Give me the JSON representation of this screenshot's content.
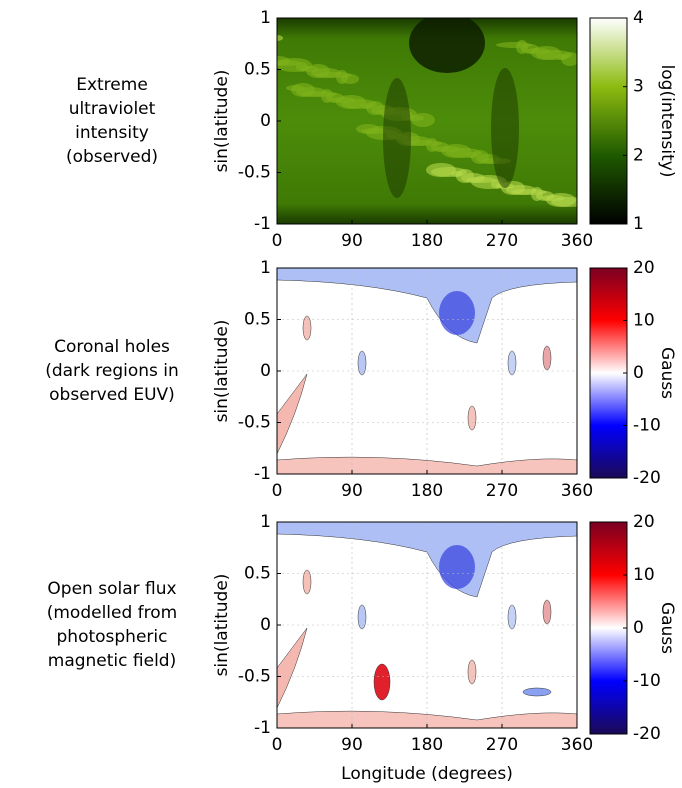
{
  "chart_data": [
    {
      "type": "heatmap",
      "row_label": [
        "Extreme",
        "ultraviolet",
        "intensity",
        "(observed)"
      ],
      "ylabel": "sin(latitude)",
      "xlim": [
        0,
        360
      ],
      "xticks": [
        0,
        90,
        180,
        270,
        360
      ],
      "ylim": [
        -1,
        1
      ],
      "yticks": [
        -1,
        -0.5,
        0,
        0.5,
        1
      ],
      "grid": false,
      "colorbar": {
        "label": "log(intensity)",
        "lim": [
          1,
          4
        ],
        "ticks": [
          1,
          2,
          3,
          4
        ],
        "colormap": [
          "#000000",
          "#1f5a00",
          "#8dbb10",
          "#ffffff"
        ]
      }
    },
    {
      "type": "heatmap",
      "row_label": [
        "Coronal holes",
        "(dark regions in",
        "observed EUV)"
      ],
      "ylabel": "sin(latitude)",
      "xlim": [
        0,
        360
      ],
      "xticks": [
        0,
        90,
        180,
        270,
        360
      ],
      "ylim": [
        -1,
        1
      ],
      "yticks": [
        -1,
        -0.5,
        0,
        0.5,
        1
      ],
      "grid": true,
      "colorbar": {
        "label": "Gauss",
        "lim": [
          -20,
          20
        ],
        "ticks": [
          -20,
          -10,
          0,
          10,
          20
        ],
        "colormap": [
          "#1b0a55",
          "#0000ff",
          "#ffffff",
          "#ff0000",
          "#7a0022"
        ]
      }
    },
    {
      "type": "heatmap",
      "row_label": [
        "Open solar flux",
        "(modelled from",
        "photospheric",
        "magnetic field)"
      ],
      "ylabel": "sin(latitude)",
      "xlabel": "Longitude (degrees)",
      "xlim": [
        0,
        360
      ],
      "xticks": [
        0,
        90,
        180,
        270,
        360
      ],
      "ylim": [
        -1,
        1
      ],
      "yticks": [
        -1,
        -0.5,
        0,
        0.5,
        1
      ],
      "grid": true,
      "colorbar": {
        "label": "Gauss",
        "lim": [
          -20,
          20
        ],
        "ticks": [
          -20,
          -10,
          0,
          10,
          20
        ],
        "colormap": [
          "#1b0a55",
          "#0000ff",
          "#ffffff",
          "#ff0000",
          "#7a0022"
        ]
      }
    }
  ]
}
